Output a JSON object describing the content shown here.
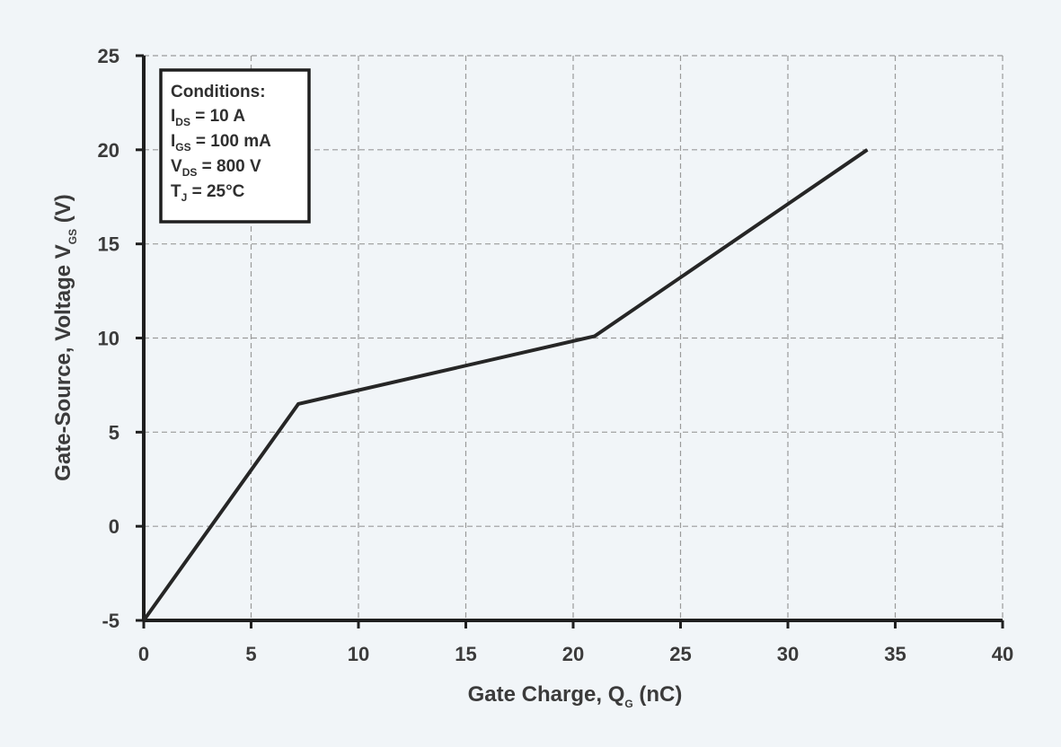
{
  "chart_data": {
    "type": "line",
    "xlabel": {
      "main": "Gate Charge, Q",
      "sub": "G",
      "unit": " (nC)"
    },
    "ylabel": {
      "main": "Gate-Source, Voltage V",
      "sub": "GS",
      "unit": " (V)"
    },
    "xlim": [
      0,
      40
    ],
    "ylim": [
      -5,
      25
    ],
    "xticks": [
      0,
      5,
      10,
      15,
      20,
      25,
      30,
      35,
      40
    ],
    "yticks": [
      -5,
      0,
      5,
      10,
      15,
      20,
      25
    ],
    "grid": true,
    "series": [
      {
        "x": [
          0,
          7.2,
          21.0,
          33.7
        ],
        "y": [
          -5.0,
          6.5,
          10.1,
          20.0
        ]
      }
    ],
    "annotations": {
      "conditions_title": "Conditions:",
      "conditions": [
        {
          "sym": "I",
          "sub": "DS",
          "val": " = 10 A"
        },
        {
          "sym": "I",
          "sub": "GS",
          "val": " = 100 mA"
        },
        {
          "sym": "V",
          "sub": "DS",
          "val": " = 800 V"
        },
        {
          "sym": "T",
          "sub": "J",
          "val": " = 25°C"
        }
      ]
    }
  }
}
